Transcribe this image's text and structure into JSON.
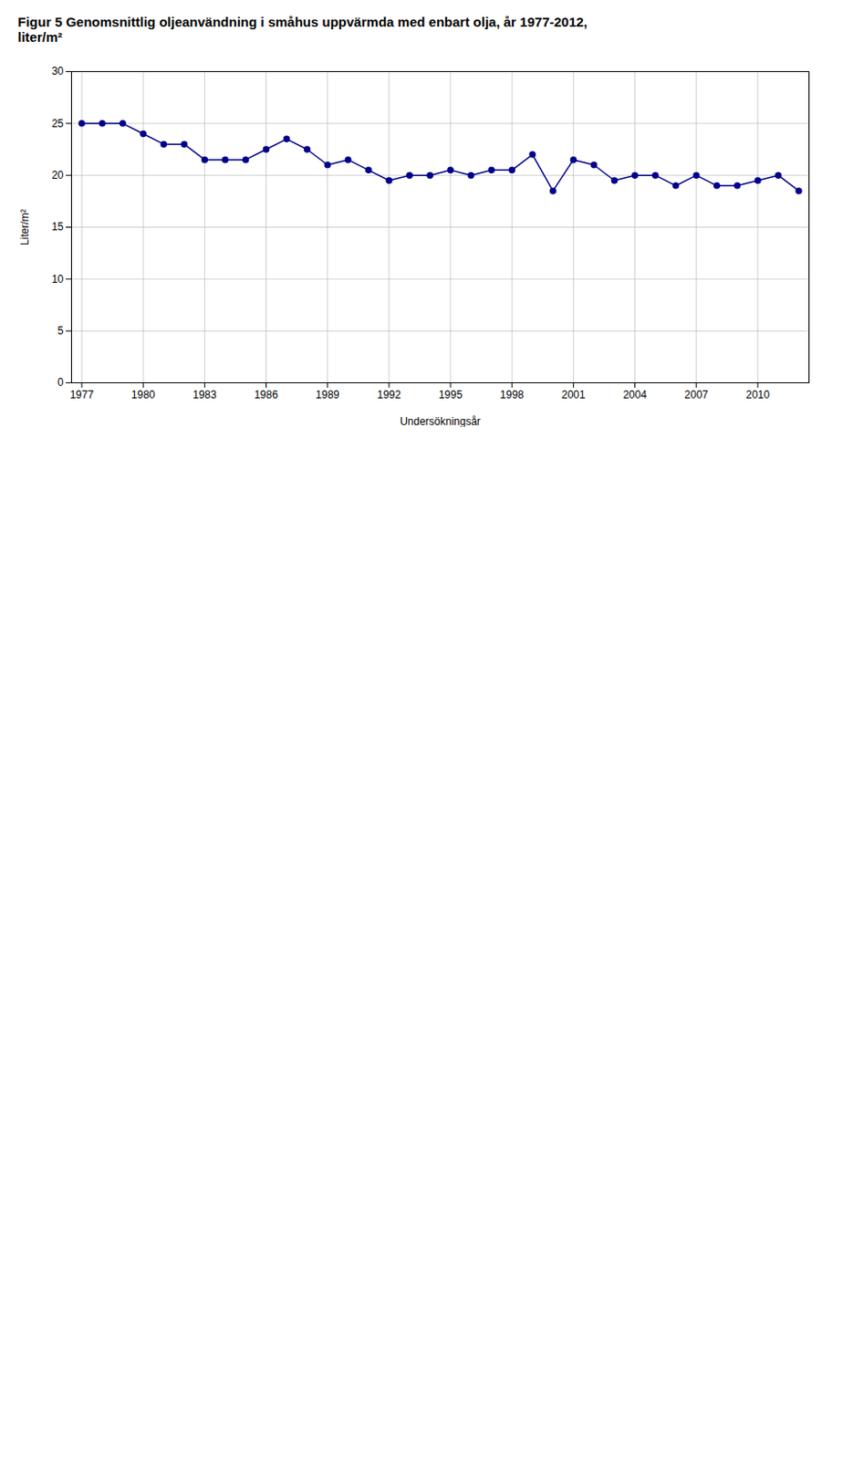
{
  "chart_data": {
    "type": "line",
    "title": "Figur 5 Genomsnittlig oljeanvändning i småhus uppvärmda med enbart olja, år 1977-2012,\nliter/m²",
    "xlabel": "Undersökningsår",
    "ylabel": "Liter/m²",
    "x": [
      1977,
      1978,
      1979,
      1980,
      1981,
      1982,
      1983,
      1984,
      1985,
      1986,
      1987,
      1988,
      1989,
      1990,
      1991,
      1992,
      1993,
      1994,
      1995,
      1996,
      1997,
      1998,
      1999,
      2000,
      2001,
      2002,
      2003,
      2004,
      2005,
      2006,
      2007,
      2008,
      2009,
      2010,
      2011,
      2012
    ],
    "values": [
      25.0,
      25.0,
      25.0,
      24.0,
      23.0,
      23.0,
      21.5,
      21.5,
      21.5,
      22.5,
      23.5,
      22.5,
      21.0,
      21.5,
      20.5,
      19.5,
      20.0,
      20.0,
      20.5,
      20.0,
      20.5,
      20.5,
      22.0,
      18.5,
      21.5,
      21.0,
      19.5,
      20.0,
      20.0,
      19.0,
      20.0,
      19.0,
      19.0,
      19.5,
      20.0,
      18.5
    ],
    "color": "#00008B",
    "marker": "circle",
    "xlim": [
      1976.5,
      2012.5
    ],
    "xticks": [
      1977,
      1980,
      1983,
      1986,
      1989,
      1992,
      1995,
      1998,
      2001,
      2004,
      2007,
      2010
    ],
    "ylim": [
      0,
      30
    ],
    "yticks": [
      0,
      5,
      10,
      15,
      20,
      25,
      30
    ],
    "grid": true
  }
}
